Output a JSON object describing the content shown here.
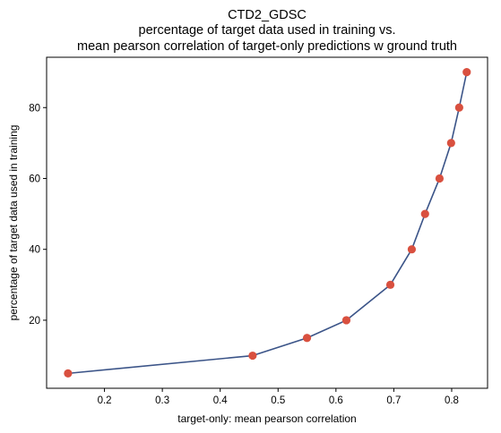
{
  "chart_data": {
    "type": "line",
    "title_lines": [
      "CTD2_GDSC",
      "percentage of target data used in training vs.",
      "mean pearson correlation of target-only predictions w ground truth"
    ],
    "xlabel": "target-only: mean pearson correlation",
    "ylabel": "percentage of target data used in training",
    "xlim": [
      0.1,
      0.862
    ],
    "ylim": [
      0.8,
      94.2
    ],
    "x_ticks": [
      0.2,
      0.3,
      0.4,
      0.5,
      0.6,
      0.7,
      0.8
    ],
    "y_ticks": [
      20,
      40,
      60,
      80
    ],
    "grid": false,
    "legend": "none",
    "series": [
      {
        "line_color": "#3b5488",
        "marker_color": "#d9503f",
        "points": [
          {
            "x": 0.137,
            "y": 5
          },
          {
            "x": 0.456,
            "y": 10
          },
          {
            "x": 0.55,
            "y": 15
          },
          {
            "x": 0.618,
            "y": 20
          },
          {
            "x": 0.694,
            "y": 30
          },
          {
            "x": 0.731,
            "y": 40
          },
          {
            "x": 0.754,
            "y": 50
          },
          {
            "x": 0.779,
            "y": 60
          },
          {
            "x": 0.799,
            "y": 70
          },
          {
            "x": 0.813,
            "y": 80
          },
          {
            "x": 0.826,
            "y": 90
          }
        ]
      }
    ]
  }
}
